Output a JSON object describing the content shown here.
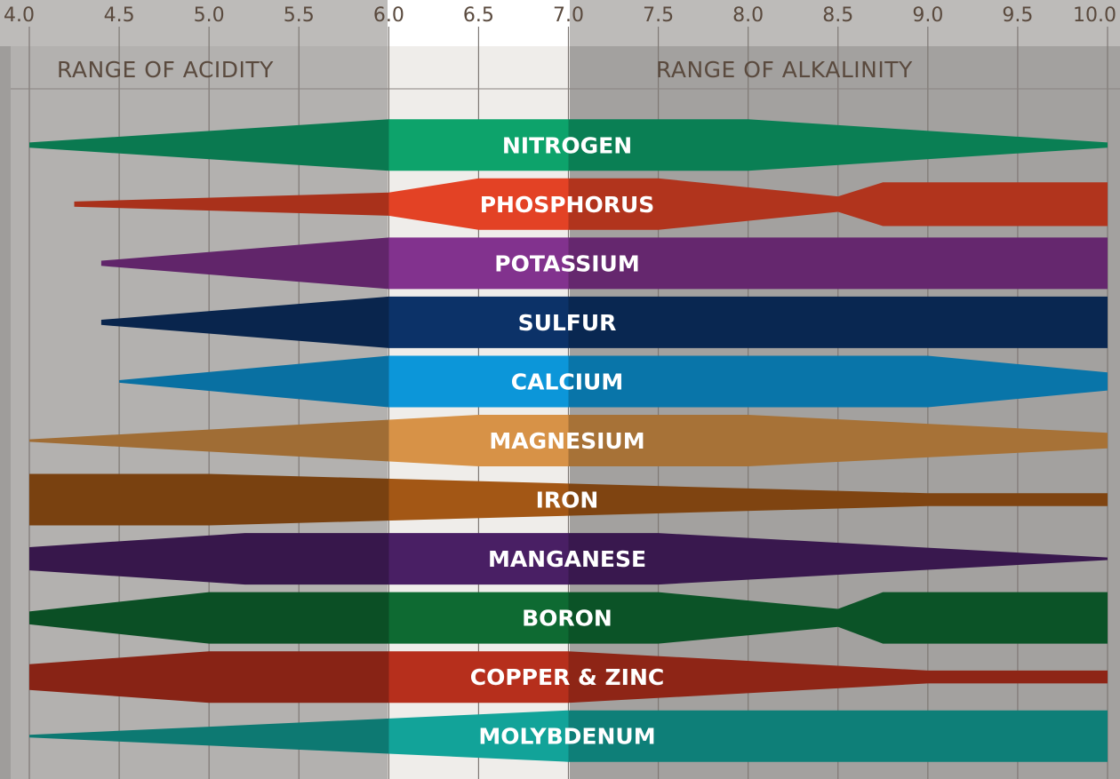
{
  "chart_data": {
    "type": "area",
    "title": "",
    "xlabel": "",
    "ylabel": "",
    "xlim": [
      4.0,
      10.0
    ],
    "x_ticks": [
      "4.0",
      "4.5",
      "5.0",
      "5.5",
      "6.0",
      "6.5",
      "7.0",
      "7.5",
      "8.0",
      "8.5",
      "9.0",
      "9.5",
      "10.0"
    ],
    "optimal_range": [
      6.0,
      7.0
    ],
    "range_labels": {
      "acidity": "RANGE OF ACIDITY",
      "alkalinity": "RANGE OF ALKALINITY"
    },
    "series": [
      {
        "name": "NITROGEN",
        "color": "#0b8a5b",
        "profile": [
          [
            4.0,
            0.1
          ],
          [
            6.0,
            1.0
          ],
          [
            8.0,
            1.0
          ],
          [
            10.0,
            0.1
          ]
        ]
      },
      {
        "name": "PHOSPHORUS",
        "color": "#c0381f",
        "profile": [
          [
            4.25,
            0.1
          ],
          [
            6.0,
            0.45
          ],
          [
            6.5,
            1.0
          ],
          [
            7.5,
            1.0
          ],
          [
            8.5,
            0.3
          ],
          [
            8.75,
            0.85
          ],
          [
            10.0,
            0.85
          ]
        ]
      },
      {
        "name": "POTASSIUM",
        "color": "#6e2a78",
        "profile": [
          [
            4.4,
            0.1
          ],
          [
            6.0,
            1.0
          ],
          [
            10.0,
            1.0
          ]
        ]
      },
      {
        "name": "SULFUR",
        "color": "#0a2a58",
        "profile": [
          [
            4.4,
            0.1
          ],
          [
            6.0,
            1.0
          ],
          [
            10.0,
            1.0
          ]
        ]
      },
      {
        "name": "CALCIUM",
        "color": "#0a7fb8",
        "profile": [
          [
            4.5,
            0.05
          ],
          [
            6.0,
            1.0
          ],
          [
            9.0,
            1.0
          ],
          [
            10.0,
            0.35
          ]
        ]
      },
      {
        "name": "MAGNESIUM",
        "color": "#b67c3c",
        "profile": [
          [
            4.0,
            0.05
          ],
          [
            6.5,
            1.0
          ],
          [
            8.0,
            1.0
          ],
          [
            10.0,
            0.3
          ]
        ]
      },
      {
        "name": "IRON",
        "color": "#8a4a12",
        "profile": [
          [
            4.0,
            1.0
          ],
          [
            5.0,
            1.0
          ],
          [
            9.0,
            0.25
          ],
          [
            10.0,
            0.25
          ]
        ]
      },
      {
        "name": "MANGANESE",
        "color": "#3e1a55",
        "profile": [
          [
            4.0,
            0.45
          ],
          [
            5.2,
            1.0
          ],
          [
            7.5,
            1.0
          ],
          [
            10.0,
            0.05
          ]
        ]
      },
      {
        "name": "BORON",
        "color": "#0c5a2a",
        "profile": [
          [
            4.0,
            0.25
          ],
          [
            5.0,
            1.0
          ],
          [
            7.5,
            1.0
          ],
          [
            8.5,
            0.35
          ],
          [
            8.75,
            1.0
          ],
          [
            10.0,
            1.0
          ]
        ]
      },
      {
        "name": "COPPER & ZINC",
        "color": "#9a2818",
        "profile": [
          [
            4.0,
            0.5
          ],
          [
            5.0,
            1.0
          ],
          [
            7.0,
            1.0
          ],
          [
            9.0,
            0.25
          ],
          [
            10.0,
            0.25
          ]
        ]
      },
      {
        "name": "MOLYBDENUM",
        "color": "#0f8a82",
        "profile": [
          [
            4.0,
            0.05
          ],
          [
            7.0,
            1.0
          ],
          [
            10.0,
            1.0
          ]
        ]
      }
    ]
  }
}
